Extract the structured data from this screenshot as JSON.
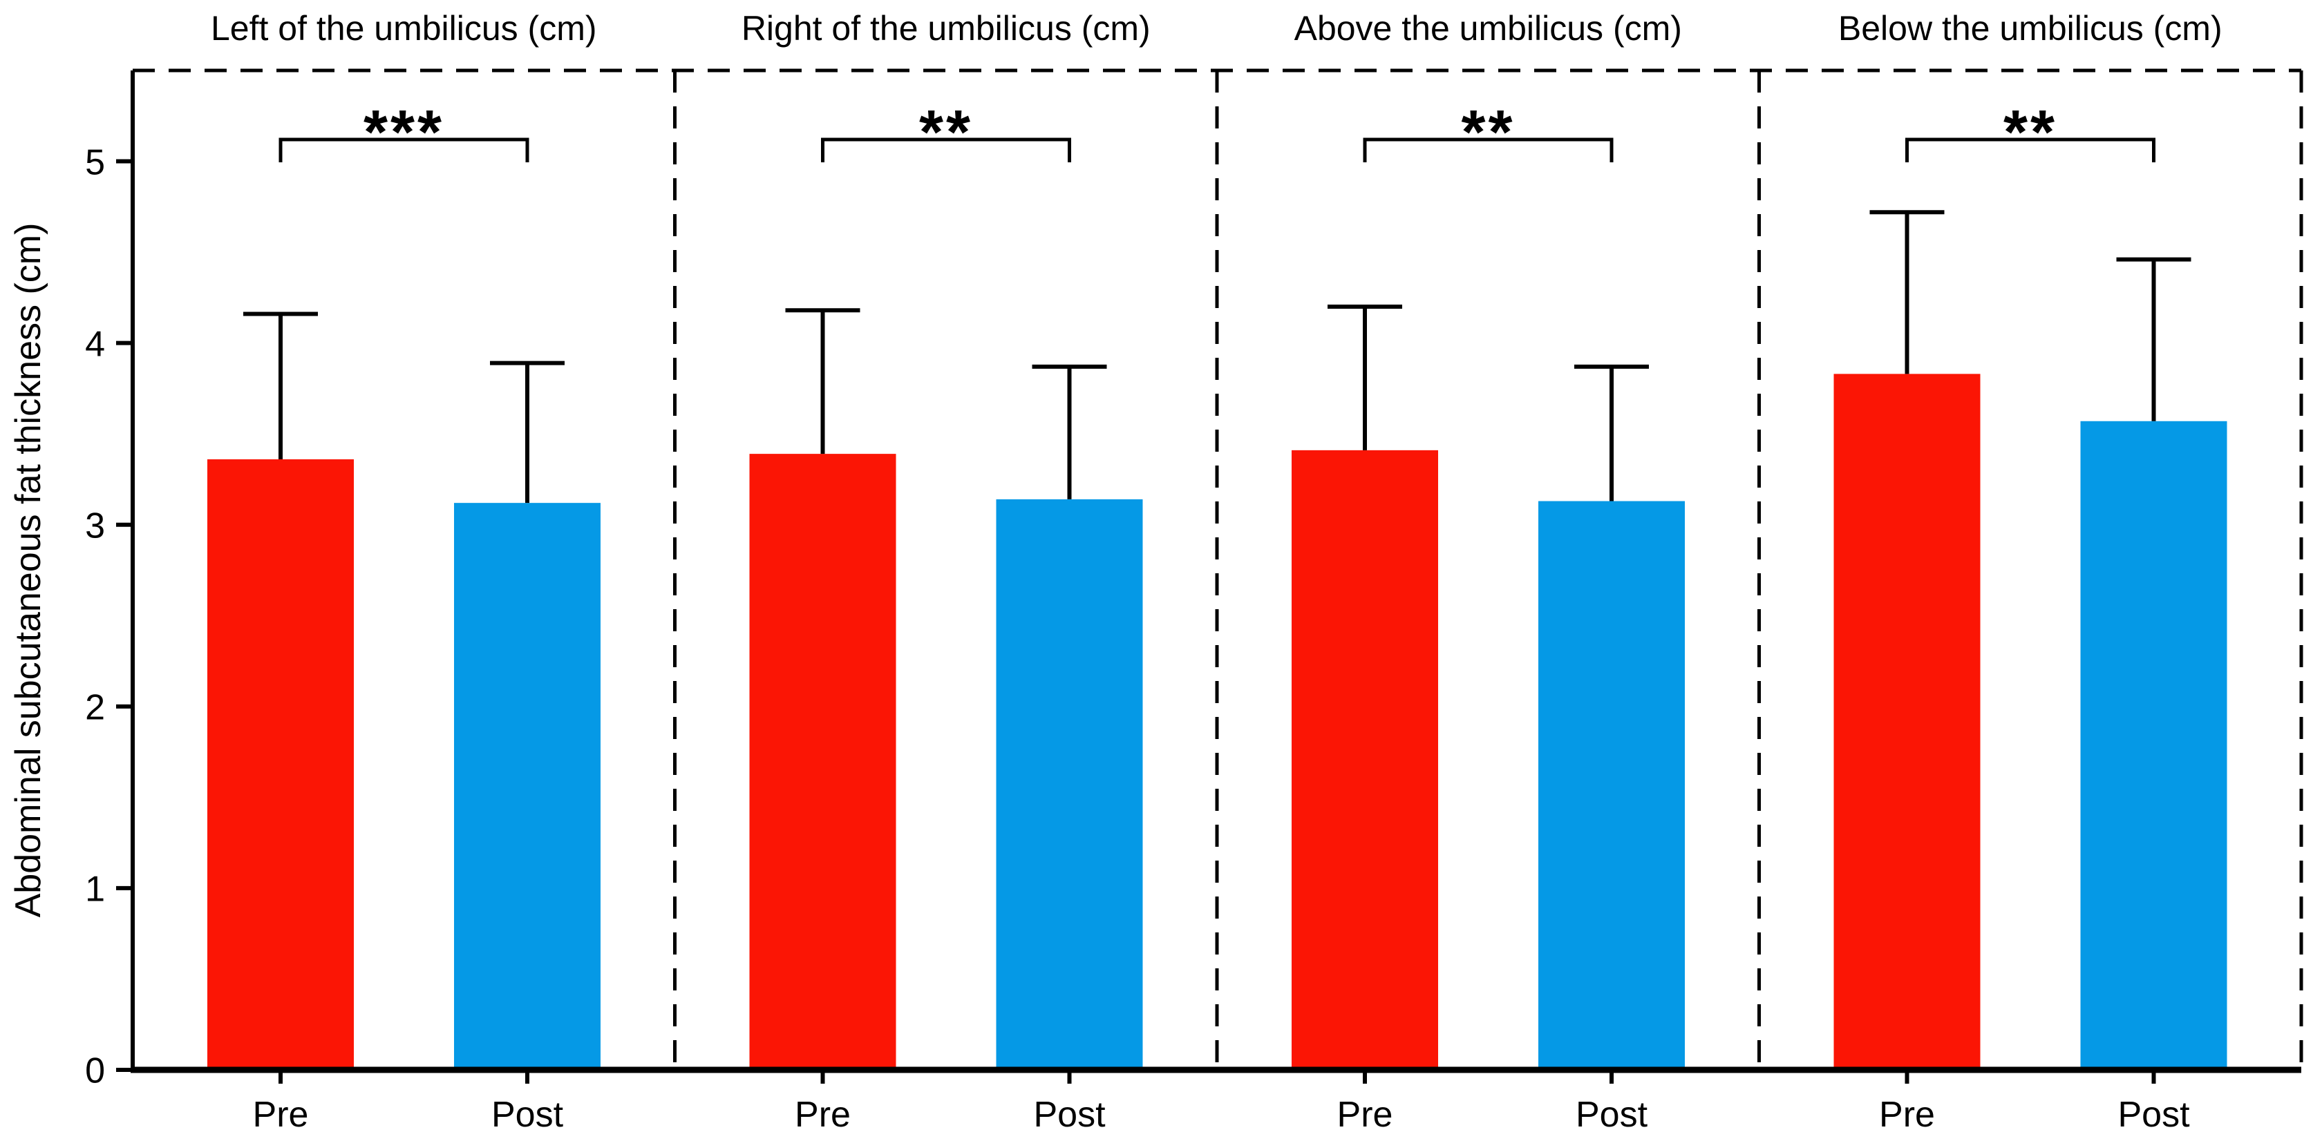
{
  "figure": {
    "background": "#ffffff",
    "ink_color": "#000000"
  },
  "chart_data": {
    "type": "bar",
    "title": "",
    "ylabel": "Abdominal subcutaneous fat thickness (cm)",
    "xlabel": "",
    "ylim": [
      0,
      5.5
    ],
    "yticks": [
      0,
      1,
      2,
      3,
      4,
      5
    ],
    "grid": false,
    "legend": "none",
    "categories": [
      "Pre",
      "Post"
    ],
    "colors": {
      "pre_bar": "#fb1505",
      "post_bar": "#0599e6"
    },
    "error_bars": "upper standard deviation, cap at top",
    "panels": [
      {
        "title": "Left of the umbilicus (cm)",
        "significance": "***",
        "bars": [
          {
            "label": "Pre",
            "mean": 3.36,
            "sd": 0.8,
            "series": "pre_bar"
          },
          {
            "label": "Post",
            "mean": 3.12,
            "sd": 0.77,
            "series": "post_bar"
          }
        ]
      },
      {
        "title": "Right of the umbilicus (cm)",
        "significance": "**",
        "bars": [
          {
            "label": "Pre",
            "mean": 3.39,
            "sd": 0.79,
            "series": "pre_bar"
          },
          {
            "label": "Post",
            "mean": 3.14,
            "sd": 0.73,
            "series": "post_bar"
          }
        ]
      },
      {
        "title": "Above the umbilicus (cm)",
        "significance": "**",
        "bars": [
          {
            "label": "Pre",
            "mean": 3.41,
            "sd": 0.79,
            "series": "pre_bar"
          },
          {
            "label": "Post",
            "mean": 3.13,
            "sd": 0.74,
            "series": "post_bar"
          }
        ]
      },
      {
        "title": "Below the umbilicus (cm)",
        "significance": "**",
        "bars": [
          {
            "label": "Pre",
            "mean": 3.83,
            "sd": 0.89,
            "series": "pre_bar"
          },
          {
            "label": "Post",
            "mean": 3.57,
            "sd": 0.89,
            "series": "post_bar"
          }
        ]
      }
    ]
  }
}
